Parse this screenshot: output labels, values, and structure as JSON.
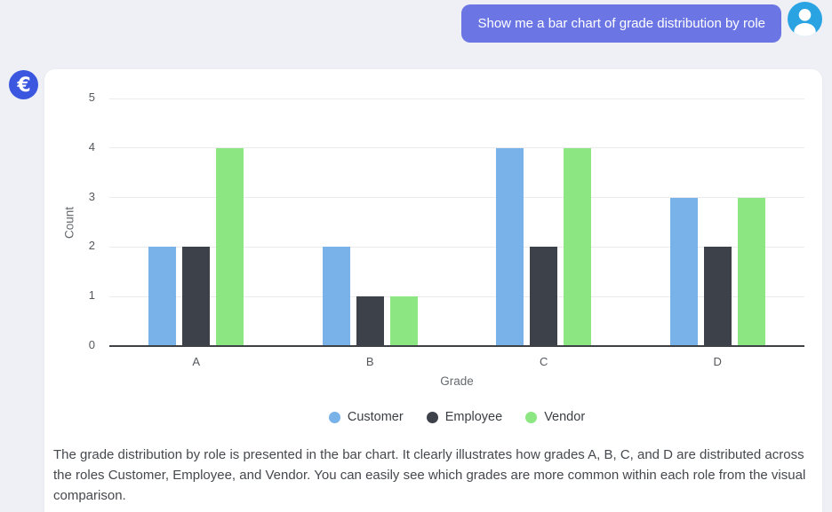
{
  "chat": {
    "user_message": "Show me a bar chart of grade distribution by role"
  },
  "assistant": {
    "description": "The grade distribution by role is presented in the bar chart. It clearly illustrates how grades A, B, C, and D are distributed across the roles Customer, Employee, and Vendor. You can easily see which grades are more common within each role from the visual comparison."
  },
  "icons": {
    "user_avatar_glyph": "person-icon",
    "assistant_logo_glyph": "€"
  },
  "colors": {
    "page_bg": "#eef0f5",
    "card_bg": "#ffffff",
    "bubble": "#6b76e4",
    "avatar": "#29a3e2",
    "logo": "#3b57e0",
    "grid": "#ebebee",
    "axis": "#3e4247"
  },
  "chart_data": {
    "type": "bar",
    "title": "",
    "categories": [
      "A",
      "B",
      "C",
      "D"
    ],
    "series": [
      {
        "name": "Customer",
        "color": "#78b2e9",
        "values": [
          2,
          2,
          4,
          3
        ]
      },
      {
        "name": "Employee",
        "color": "#3d4149",
        "values": [
          2,
          1,
          2,
          2
        ]
      },
      {
        "name": "Vendor",
        "color": "#8ce783",
        "values": [
          4,
          1,
          4,
          3
        ]
      }
    ],
    "xlabel": "Grade",
    "ylabel": "Count",
    "ylim": [
      0,
      5
    ],
    "yticks": [
      0,
      1,
      2,
      3,
      4,
      5
    ],
    "grid": true,
    "legend_position": "bottom"
  }
}
